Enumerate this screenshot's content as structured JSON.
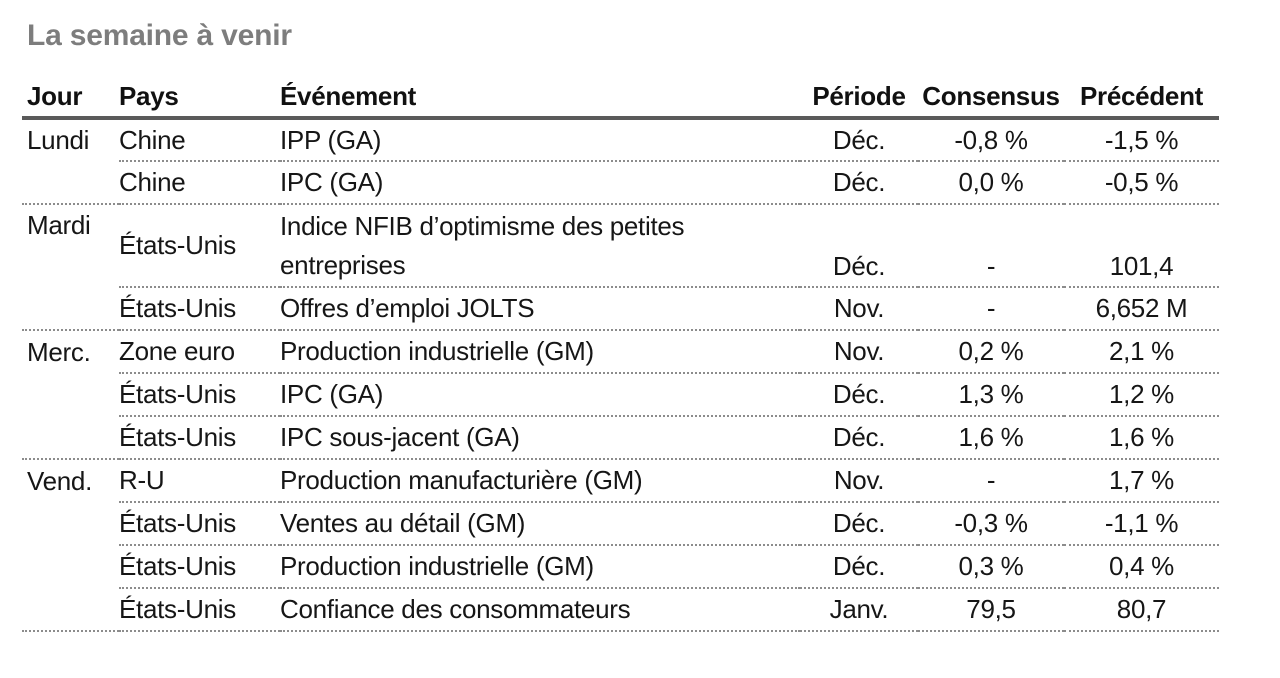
{
  "page_title": "La semaine à venir",
  "colors": {
    "title_gray": "#7d7d7d",
    "header_rule_gray": "#5a5a5a",
    "dotted_separator_gray": "#8c8c8c",
    "body_text": "#161616"
  },
  "table": {
    "headers": {
      "jour": "Jour",
      "pays": "Pays",
      "evenement": "Événement",
      "periode": "Période",
      "consensus": "Consensus",
      "precedent": "Précédent"
    },
    "rows": [
      {
        "jour": "Lundi",
        "pays": "Chine",
        "evenement": "IPP (GA)",
        "periode": "Déc.",
        "consensus": "-0,8 %",
        "precedent": "-1,5 %"
      },
      {
        "jour": "",
        "pays": "Chine",
        "evenement": "IPC (GA)",
        "periode": "Déc.",
        "consensus": "0,0 %",
        "precedent": "-0,5 %"
      },
      {
        "jour": "Mardi",
        "pays": "États-Unis",
        "evenement": "Indice NFIB d’optimisme des petites entreprises",
        "periode": "Déc.",
        "consensus": "-",
        "precedent": "101,4"
      },
      {
        "jour": "",
        "pays": "États-Unis",
        "evenement": "Offres d’emploi JOLTS",
        "periode": "Nov.",
        "consensus": "-",
        "precedent": "6,652 M"
      },
      {
        "jour": "Merc.",
        "pays": "Zone euro",
        "evenement": "Production industrielle (GM)",
        "periode": "Nov.",
        "consensus": "0,2 %",
        "precedent": "2,1 %"
      },
      {
        "jour": "",
        "pays": "États-Unis",
        "evenement": "IPC (GA)",
        "periode": "Déc.",
        "consensus": "1,3 %",
        "precedent": "1,2 %"
      },
      {
        "jour": "",
        "pays": "États-Unis",
        "evenement": "IPC sous-jacent (GA)",
        "periode": "Déc.",
        "consensus": "1,6 %",
        "precedent": "1,6 %"
      },
      {
        "jour": "Vend.",
        "pays": "R-U",
        "evenement": "Production manufacturière (GM)",
        "periode": "Nov.",
        "consensus": "-",
        "precedent": "1,7 %"
      },
      {
        "jour": "",
        "pays": "États-Unis",
        "evenement": "Ventes au détail (GM)",
        "periode": "Déc.",
        "consensus": "-0,3 %",
        "precedent": "-1,1 %"
      },
      {
        "jour": "",
        "pays": "États-Unis",
        "evenement": "Production industrielle (GM)",
        "periode": "Déc.",
        "consensus": "0,3 %",
        "precedent": "0,4 %"
      },
      {
        "jour": "",
        "pays": "États-Unis",
        "evenement": "Confiance des consommateurs",
        "periode": "Janv.",
        "consensus": "79,5",
        "precedent": "80,7"
      }
    ]
  }
}
